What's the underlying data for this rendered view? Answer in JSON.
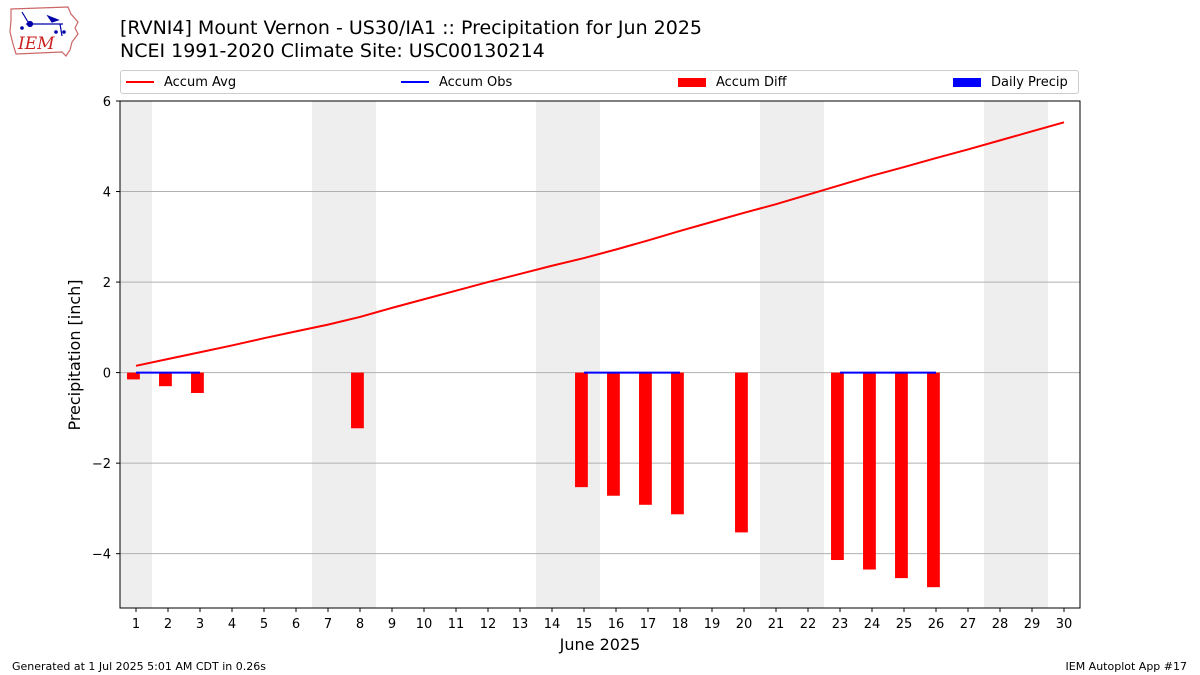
{
  "logo": {
    "text": "IEM"
  },
  "title_line1": "[RVNI4] Mount Vernon - US30/IA1 :: Precipitation for Jun 2025",
  "title_line2": "NCEI 1991-2020 Climate Site: USC00130214",
  "footer_left": "Generated at 1 Jul 2025 5:01 AM CDT in 0.26s",
  "footer_right": "IEM Autoplot App #17",
  "chart_data": {
    "type": "bar",
    "xlabel": "June 2025",
    "ylabel": "Precipitation [inch]",
    "xlim": [
      0.5,
      30.5
    ],
    "ylim": [
      -5.2,
      6.0
    ],
    "yticks": [
      -4,
      -2,
      0,
      2,
      4,
      6
    ],
    "ytick_labels": [
      "−4",
      "−2",
      "0",
      "2",
      "4",
      "6"
    ],
    "x": [
      1,
      2,
      3,
      4,
      5,
      6,
      7,
      8,
      9,
      10,
      11,
      12,
      13,
      14,
      15,
      16,
      17,
      18,
      19,
      20,
      21,
      22,
      23,
      24,
      25,
      26,
      27,
      28,
      29,
      30
    ],
    "grid": "horizontal",
    "weekends": [
      [
        0.5,
        1.5
      ],
      [
        6.5,
        8.5
      ],
      [
        13.5,
        15.5
      ],
      [
        20.5,
        22.5
      ],
      [
        27.5,
        29.5
      ]
    ],
    "colors": {
      "accum_avg": "#ff0000",
      "accum_obs": "#0000ff",
      "accum_diff": "#ff0000",
      "daily_precip": "#0000ff",
      "weekend": "#eeeeee",
      "grid": "#b0b0b0"
    },
    "legend": [
      "Accum Avg",
      "Accum Obs",
      "Accum Diff",
      "Daily Precip"
    ],
    "legend_placement": "top, above plot",
    "series": [
      {
        "name": "Accum Avg",
        "type": "line",
        "x": [
          1,
          2,
          3,
          4,
          5,
          6,
          7,
          8,
          9,
          10,
          11,
          12,
          13,
          14,
          15,
          16,
          17,
          18,
          19,
          20,
          21,
          22,
          23,
          24,
          25,
          26,
          27,
          28,
          29,
          30
        ],
        "values": [
          0.15,
          0.3,
          0.45,
          0.6,
          0.76,
          0.91,
          1.06,
          1.23,
          1.43,
          1.62,
          1.81,
          2.0,
          2.18,
          2.36,
          2.53,
          2.72,
          2.92,
          3.13,
          3.33,
          3.53,
          3.72,
          3.93,
          4.14,
          4.35,
          4.54,
          4.74,
          4.93,
          5.13,
          5.33,
          5.53
        ]
      },
      {
        "name": "Accum Obs",
        "type": "line",
        "segments": [
          {
            "x": [
              1,
              3
            ],
            "values": [
              0,
              0
            ]
          },
          {
            "x": [
              15,
              18
            ],
            "values": [
              0,
              0
            ]
          },
          {
            "x": [
              23,
              26
            ],
            "values": [
              0,
              0
            ]
          }
        ]
      },
      {
        "name": "Accum Diff",
        "type": "bar",
        "x": [
          1,
          2,
          3,
          8,
          15,
          16,
          17,
          18,
          20,
          23,
          24,
          25,
          26
        ],
        "values": [
          -0.15,
          -0.3,
          -0.45,
          -1.23,
          -2.53,
          -2.72,
          -2.92,
          -3.13,
          -3.53,
          -4.14,
          -4.35,
          -4.54,
          -4.74
        ]
      },
      {
        "name": "Daily Precip",
        "type": "bar",
        "x": [],
        "values": []
      }
    ]
  }
}
